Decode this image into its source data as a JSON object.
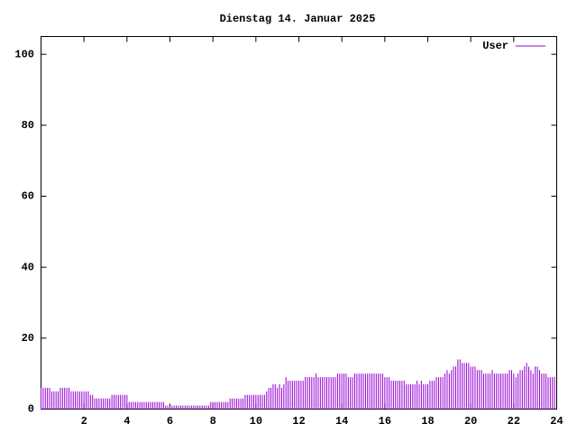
{
  "chart_data": {
    "type": "impulses",
    "title": "Dienstag 14. Januar 2025",
    "xlim": [
      0,
      24
    ],
    "xticks": [
      2,
      4,
      6,
      8,
      10,
      12,
      14,
      16,
      18,
      20,
      22,
      24
    ],
    "ylim": [
      0,
      105
    ],
    "yticks": [
      0,
      20,
      40,
      60,
      80,
      100
    ],
    "legend": "top-right",
    "x": [
      0,
      0.1,
      0.2,
      0.3,
      0.4,
      0.5,
      0.6,
      0.7,
      0.8,
      0.9,
      1,
      1.1,
      1.2,
      1.3,
      1.4,
      1.5,
      1.6,
      1.7,
      1.8,
      1.9,
      2,
      2.1,
      2.2,
      2.3,
      2.4,
      2.5,
      2.6,
      2.7,
      2.8,
      2.9,
      3,
      3.1,
      3.2,
      3.3,
      3.4,
      3.5,
      3.6,
      3.7,
      3.8,
      3.9,
      4,
      4.1,
      4.2,
      4.3,
      4.4,
      4.5,
      4.6,
      4.7,
      4.8,
      4.9,
      5,
      5.1,
      5.2,
      5.3,
      5.4,
      5.5,
      5.6,
      5.7,
      5.8,
      5.9,
      6,
      6.1,
      6.2,
      6.3,
      6.4,
      6.5,
      6.6,
      6.7,
      6.8,
      6.9,
      7,
      7.1,
      7.2,
      7.3,
      7.4,
      7.5,
      7.6,
      7.7,
      7.8,
      7.9,
      8,
      8.1,
      8.2,
      8.3,
      8.4,
      8.5,
      8.6,
      8.7,
      8.8,
      8.9,
      9,
      9.1,
      9.2,
      9.3,
      9.4,
      9.5,
      9.6,
      9.7,
      9.8,
      9.9,
      10,
      10.1,
      10.2,
      10.3,
      10.4,
      10.5,
      10.6,
      10.7,
      10.8,
      10.9,
      11,
      11.1,
      11.2,
      11.3,
      11.4,
      11.5,
      11.6,
      11.7,
      11.8,
      11.9,
      12,
      12.1,
      12.2,
      12.3,
      12.4,
      12.5,
      12.6,
      12.7,
      12.8,
      12.9,
      13,
      13.1,
      13.2,
      13.3,
      13.4,
      13.5,
      13.6,
      13.7,
      13.8,
      13.9,
      14,
      14.1,
      14.2,
      14.3,
      14.4,
      14.5,
      14.6,
      14.7,
      14.8,
      14.9,
      15,
      15.1,
      15.2,
      15.3,
      15.4,
      15.5,
      15.6,
      15.7,
      15.8,
      15.9,
      16,
      16.1,
      16.2,
      16.3,
      16.4,
      16.5,
      16.6,
      16.7,
      16.8,
      16.9,
      17,
      17.1,
      17.2,
      17.3,
      17.4,
      17.5,
      17.6,
      17.7,
      17.8,
      17.9,
      18,
      18.1,
      18.2,
      18.3,
      18.4,
      18.5,
      18.6,
      18.7,
      18.8,
      18.9,
      19,
      19.1,
      19.2,
      19.3,
      19.4,
      19.5,
      19.6,
      19.7,
      19.8,
      19.9,
      20,
      20.1,
      20.2,
      20.3,
      20.4,
      20.5,
      20.6,
      20.7,
      20.8,
      20.9,
      21,
      21.1,
      21.2,
      21.3,
      21.4,
      21.5,
      21.6,
      21.7,
      21.8,
      21.9,
      22,
      22.1,
      22.2,
      22.3,
      22.4,
      22.5,
      22.6,
      22.7,
      22.8,
      22.9,
      23,
      23.1,
      23.2,
      23.3,
      23.4,
      23.5,
      23.6,
      23.7,
      23.8,
      23.9
    ],
    "series": [
      {
        "name": "User",
        "color": "#9400d3",
        "values": [
          6,
          6,
          6,
          6,
          6,
          5,
          5,
          5,
          5,
          6,
          6,
          6,
          6,
          6,
          5,
          5,
          5,
          5,
          5,
          5,
          5,
          5,
          5,
          4,
          4,
          3,
          3,
          3,
          3,
          3,
          3,
          3,
          3,
          4,
          4,
          4,
          4,
          4,
          4,
          4,
          4,
          2,
          2,
          2,
          2,
          2,
          2,
          2,
          2,
          2,
          2,
          2,
          2,
          2,
          2,
          2,
          2,
          2,
          1,
          1,
          1,
          1,
          1,
          1,
          1,
          1,
          1,
          1,
          1,
          1,
          1,
          1,
          1,
          1,
          1,
          1,
          1,
          1,
          1,
          2,
          2,
          2,
          2,
          2,
          2,
          2,
          2,
          2,
          3,
          3,
          3,
          3,
          3,
          3,
          3,
          4,
          4,
          4,
          4,
          4,
          4,
          4,
          4,
          4,
          4,
          5,
          6,
          6,
          7,
          7,
          6,
          7,
          6,
          7,
          9,
          8,
          8,
          8,
          8,
          8,
          8,
          8,
          8,
          9,
          9,
          9,
          9,
          9,
          10,
          9,
          9,
          9,
          9,
          9,
          9,
          9,
          9,
          9,
          10,
          10,
          10,
          10,
          10,
          9,
          9,
          9,
          10,
          10,
          10,
          10,
          10,
          10,
          10,
          10,
          10,
          10,
          10,
          10,
          10,
          10,
          9,
          9,
          9,
          8,
          8,
          8,
          8,
          8,
          8,
          8,
          7,
          7,
          7,
          7,
          7,
          8,
          7,
          8,
          7,
          7,
          7,
          8,
          8,
          8,
          9,
          9,
          9,
          9,
          10,
          11,
          10,
          11,
          12,
          12,
          14,
          14,
          13,
          13,
          13,
          13,
          12,
          12,
          12,
          11,
          11,
          11,
          10,
          10,
          10,
          10,
          11,
          10,
          10,
          10,
          10,
          10,
          10,
          10,
          11,
          11,
          10,
          9,
          10,
          11,
          11,
          12,
          13,
          12,
          11,
          10,
          12,
          12,
          11,
          10,
          10,
          10,
          9,
          9,
          9,
          9
        ]
      }
    ]
  }
}
